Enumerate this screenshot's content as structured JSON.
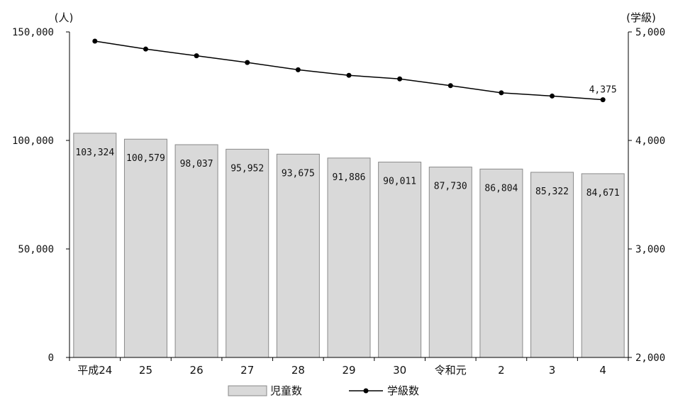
{
  "chart_data": {
    "type": "bar",
    "categories": [
      "平成24",
      "25",
      "26",
      "27",
      "28",
      "29",
      "30",
      "令和元",
      "2",
      "3",
      "4"
    ],
    "series": [
      {
        "name": "児童数",
        "type": "bar",
        "axis": "left",
        "values": [
          103324,
          100579,
          98037,
          95952,
          93675,
          91886,
          90011,
          87730,
          86804,
          85322,
          84671
        ],
        "value_labels": [
          "103,324",
          "100,579",
          "98,037",
          "95,952",
          "93,675",
          "91,886",
          "90,011",
          "87,730",
          "86,804",
          "85,322",
          "84,671"
        ],
        "color": "#d9d9d9"
      },
      {
        "name": "学級数",
        "type": "line",
        "axis": "right",
        "values": [
          4915,
          4842,
          4780,
          4718,
          4651,
          4600,
          4567,
          4505,
          4439,
          4409,
          4375
        ],
        "color": "#000000"
      }
    ],
    "left_axis": {
      "unit": "(人)",
      "range": [
        0,
        150000
      ],
      "ticks": [
        0,
        50000,
        100000,
        150000
      ],
      "tick_labels": [
        "0",
        "50,000",
        "100,000",
        "150,000"
      ]
    },
    "right_axis": {
      "unit": "(学級)",
      "range": [
        2000,
        5000
      ],
      "ticks": [
        2000,
        3000,
        4000,
        5000
      ],
      "tick_labels": [
        "2,000",
        "3,000",
        "4,000",
        "5,000"
      ]
    },
    "annotation": "4,375",
    "legend": {
      "position": "bottom",
      "items": [
        "児童数",
        "学級数"
      ]
    },
    "grid": false
  }
}
